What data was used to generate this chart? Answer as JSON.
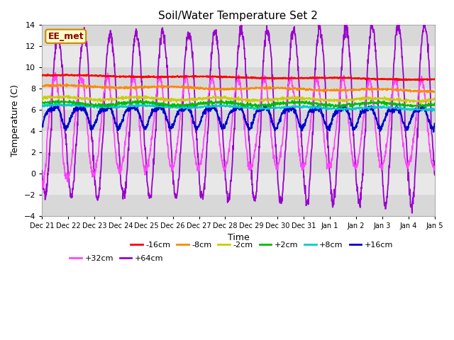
{
  "title": "Soil/Water Temperature Set 2",
  "xlabel": "Time",
  "ylabel": "Temperature (C)",
  "ylim": [
    -4,
    14
  ],
  "yticks": [
    -4,
    -2,
    0,
    2,
    4,
    6,
    8,
    10,
    12,
    14
  ],
  "background_color": "#ffffff",
  "plot_bg_color": "#e0e0e0",
  "annotation_text": "EE_met",
  "annotation_bg": "#ffffcc",
  "annotation_border": "#cc8800",
  "series_colors": {
    "-16cm": "#ff0000",
    "-8cm": "#ff8800",
    "-2cm": "#cccc00",
    "+2cm": "#00bb00",
    "+8cm": "#00cccc",
    "+16cm": "#0000cc",
    "+32cm": "#ff44ff",
    "+64cm": "#9900cc"
  },
  "x_tick_labels": [
    "Dec 21",
    "Dec 22",
    "Dec 23",
    "Dec 24",
    "Dec 25",
    "Dec 26",
    "Dec 27",
    "Dec 28",
    "Dec 29",
    "Dec 30",
    "Dec 31",
    "Jan 1",
    "Jan 2",
    "Jan 3",
    "Jan 4",
    "Jan 5"
  ],
  "n_points": 1440,
  "days": 15,
  "band_colors": [
    "#d8d8d8",
    "#e8e8e8"
  ]
}
